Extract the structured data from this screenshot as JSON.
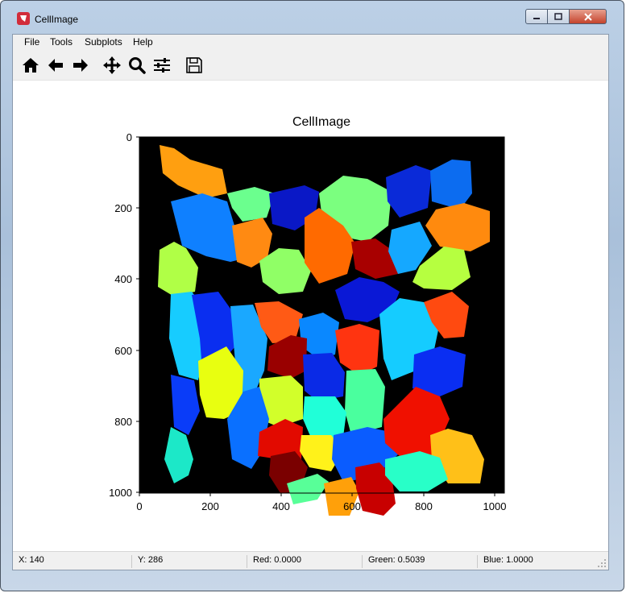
{
  "window": {
    "title": "CellImage"
  },
  "menu": [
    "File",
    "Tools",
    "Subplots",
    "Help"
  ],
  "toolbar": [
    "home-icon",
    "back-icon",
    "forward-icon",
    "pan-icon",
    "zoom-icon",
    "configure-subplots-icon",
    "save-icon"
  ],
  "plot": {
    "title": "CellImage",
    "x_ticks": [
      "0",
      "200",
      "400",
      "600",
      "800",
      "1000"
    ],
    "y_ticks": [
      "0",
      "200",
      "400",
      "600",
      "800",
      "1000"
    ]
  },
  "status": {
    "x": "X: 140",
    "y": "Y: 286",
    "red": "Red: 0.0000",
    "green": "Green: 0.5039",
    "blue": "Blue: 1.0000"
  }
}
